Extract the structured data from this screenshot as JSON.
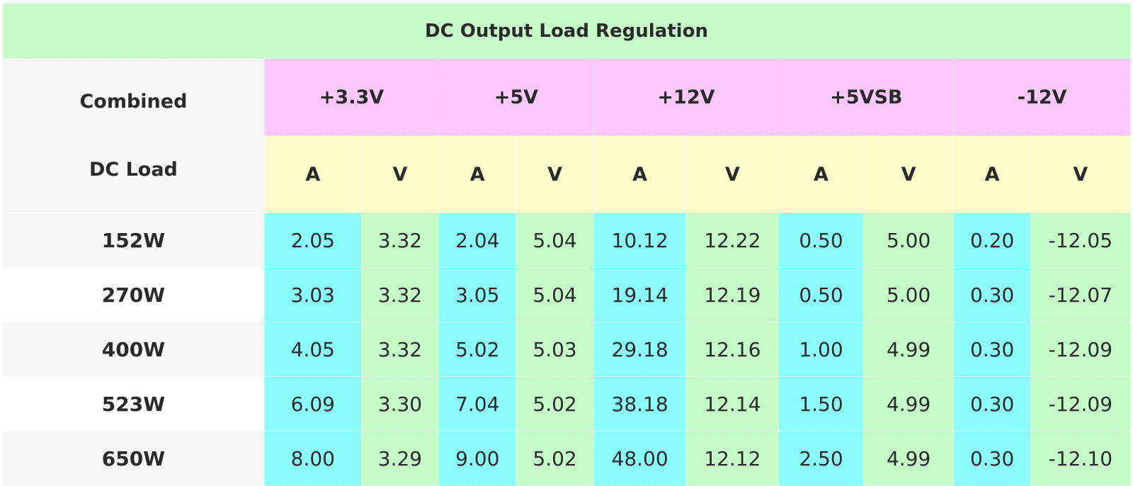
{
  "table": {
    "title": "DC Output Load Regulation",
    "corner_line1": "Combined",
    "corner_line2": "DC Load",
    "rails": [
      "+3.3V",
      "+5V",
      "+12V",
      "+5VSB",
      "-12V"
    ],
    "units": [
      "A",
      "V",
      "A",
      "V",
      "A",
      "V",
      "A",
      "V",
      "A",
      "V"
    ],
    "rows": [
      {
        "load": "152W",
        "values": [
          "2.05",
          "3.32",
          "2.04",
          "5.04",
          "10.12",
          "12.22",
          "0.50",
          "5.00",
          "0.20",
          "-12.05"
        ]
      },
      {
        "load": "270W",
        "values": [
          "3.03",
          "3.32",
          "3.05",
          "5.04",
          "19.14",
          "12.19",
          "0.50",
          "5.00",
          "0.30",
          "-12.07"
        ]
      },
      {
        "load": "400W",
        "values": [
          "4.05",
          "3.32",
          "5.02",
          "5.03",
          "29.18",
          "12.16",
          "1.00",
          "4.99",
          "0.30",
          "-12.09"
        ]
      },
      {
        "load": "523W",
        "values": [
          "6.09",
          "3.30",
          "7.04",
          "5.02",
          "38.18",
          "12.14",
          "1.50",
          "4.99",
          "0.30",
          "-12.09"
        ]
      },
      {
        "load": "650W",
        "values": [
          "8.00",
          "3.29",
          "9.00",
          "5.02",
          "48.00",
          "12.12",
          "2.50",
          "4.99",
          "0.30",
          "-12.10"
        ]
      }
    ]
  },
  "colors": {
    "title_bg": "#c6fcc7",
    "rail_header_bg": "#fdc9fd",
    "unit_header_bg": "#fdfdcb",
    "amp_cell_bg": "#8cfdfd",
    "volt_cell_bg": "#c6fcc7",
    "load_cell_bg": "#f6f6f6"
  }
}
